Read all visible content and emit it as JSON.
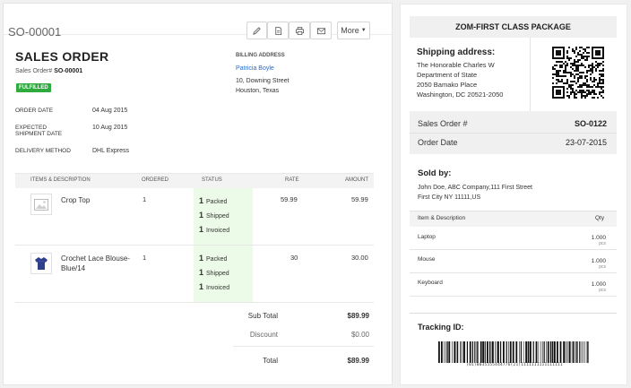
{
  "toolbar": {
    "record_id": "SO-00001",
    "more_label": "More",
    "icons": [
      "edit-icon",
      "pdf-icon",
      "print-icon",
      "email-icon",
      "caret-down-icon"
    ]
  },
  "order": {
    "title": "SALES ORDER",
    "number_label": "Sales Order#",
    "number": "SO-00001",
    "status_badge": "FULFILLED",
    "badge_color": "#2eaa3f",
    "order_date_label": "ORDER DATE",
    "order_date": "04 Aug 2015",
    "expected_label_1": "EXPECTED",
    "expected_label_2": "SHIPMENT DATE",
    "expected_date": "10 Aug 2015",
    "delivery_label": "DELIVERY METHOD",
    "delivery": "DHL Express"
  },
  "billing": {
    "label": "BILLING ADDRESS",
    "name": "Patricia Boyle",
    "line1": "10, Downing Street",
    "line2": "Houston, Texas"
  },
  "table": {
    "headers": {
      "items": "ITEMS & DESCRIPTION",
      "ordered": "ORDERED",
      "status": "STATUS",
      "rate": "RATE",
      "amount": "AMOUNT"
    },
    "rows": [
      {
        "name_line1": "Crop Top",
        "name_line2": "",
        "ordered": "1",
        "status": [
          {
            "count": "1",
            "label": "Packed"
          },
          {
            "count": "1",
            "label": "Shipped"
          },
          {
            "count": "1",
            "label": "Invoiced"
          }
        ],
        "rate": "59.99",
        "amount": "59.99",
        "thumb_icon": "image-placeholder-icon"
      },
      {
        "name_line1": "Crochet Lace Blouse-",
        "name_line2": "Blue/14",
        "ordered": "1",
        "status": [
          {
            "count": "1",
            "label": "Packed"
          },
          {
            "count": "1",
            "label": "Shipped"
          },
          {
            "count": "1",
            "label": "Invoiced"
          }
        ],
        "rate": "30",
        "amount": "30.00",
        "thumb_icon": "blouse-icon"
      }
    ],
    "status_highlight_color": "#ecfbe7"
  },
  "totals": {
    "sub_total_label": "Sub Total",
    "sub_total": "$89.99",
    "discount_label": "Discount",
    "discount": "$0.00",
    "total_label": "Total",
    "total": "$89.99"
  },
  "label": {
    "package_title": "ZOM-FIRST CLASS PACKAGE",
    "shipping_label": "Shipping address:",
    "ship_lines": [
      "The Honorable Charles W",
      "Department of State",
      "2050 Bamako Place",
      "Washington, DC 20521-2050"
    ],
    "sales_order_label": "Sales Order #",
    "sales_order": "SO-0122",
    "order_date_label": "Order Date",
    "order_date": "23-07-2015",
    "sold_by_label": "Sold by:",
    "sold_by_line1": "John Doe, ABC Company,111 First Street",
    "sold_by_line2": "First City NY 11111,US",
    "items_header": "Item & Description",
    "qty_header": "Qty",
    "items": [
      {
        "name": "Laptop",
        "qty": "1.000",
        "unit": "pcs"
      },
      {
        "name": "Mouse",
        "qty": "1.000",
        "unit": "pcs"
      },
      {
        "name": "Keyboard",
        "qty": "1.000",
        "unit": "pcs"
      }
    ],
    "tracking_label": "Tracking ID:",
    "tracking_number": "(01)0035555444776(21)1111111111111111"
  }
}
